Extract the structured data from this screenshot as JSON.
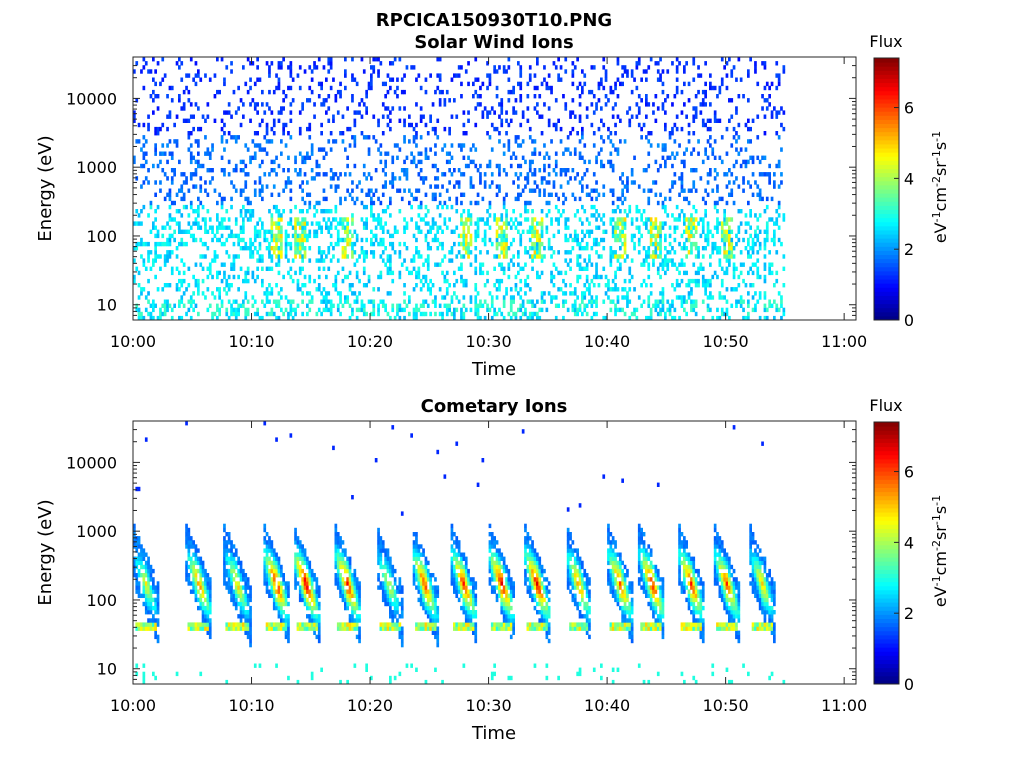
{
  "figure": {
    "title": "RPCICA150930T10.PNG"
  },
  "colorbar": {
    "label": "Flux",
    "unit_base": "eV",
    "ticks": [
      "0",
      "2",
      "4",
      "6"
    ],
    "range": [
      0,
      7.4
    ],
    "colormap": "jet"
  },
  "chart_data": [
    {
      "type": "heatmap",
      "title": "Solar Wind Ions",
      "xlabel": "Time",
      "ylabel": "Energy (eV)",
      "x_ticks": [
        "10:00",
        "10:10",
        "10:20",
        "10:30",
        "10:40",
        "10:50",
        "11:00"
      ],
      "y_ticks": [
        "10",
        "100",
        "1000",
        "10000"
      ],
      "xlim_min": [
        0,
        61
      ],
      "ylim": [
        6,
        40000
      ],
      "y_scale": "log",
      "data_end_min": 55,
      "description_features": {
        "sparse_background_flux": 1.0,
        "enhanced_bursts_min": [
          12,
          14,
          18,
          28,
          31,
          34,
          41,
          44,
          47,
          50
        ],
        "burst_energy_eV": [
          50,
          200
        ],
        "low_energy_band_eV": [
          6,
          60
        ]
      }
    },
    {
      "type": "heatmap",
      "title": "Cometary Ions",
      "xlabel": "Time",
      "ylabel": "Energy (eV)",
      "x_ticks": [
        "10:00",
        "10:10",
        "10:20",
        "10:30",
        "10:40",
        "10:50",
        "11:00"
      ],
      "y_ticks": [
        "10",
        "100",
        "1000",
        "10000"
      ],
      "xlim_min": [
        0,
        61
      ],
      "ylim": [
        6,
        40000
      ],
      "y_scale": "log",
      "data_end_min": 55,
      "description_features": {
        "pulse_centers_min": [
          1,
          5.5,
          8.7,
          12,
          14.5,
          18,
          21.5,
          24.5,
          27.8,
          31,
          34,
          37.5,
          41,
          43.7,
          47,
          50,
          53
        ],
        "pulse_peak_flux": [
          4.5,
          5.5,
          5,
          6.5,
          6.8,
          6.5,
          4.5,
          6,
          6.2,
          6.5,
          6.6,
          5.5,
          6,
          6.4,
          6.3,
          6,
          5
        ],
        "pulse_energy_eV": [
          20,
          400
        ],
        "flat_band_eV": 40
      }
    }
  ]
}
